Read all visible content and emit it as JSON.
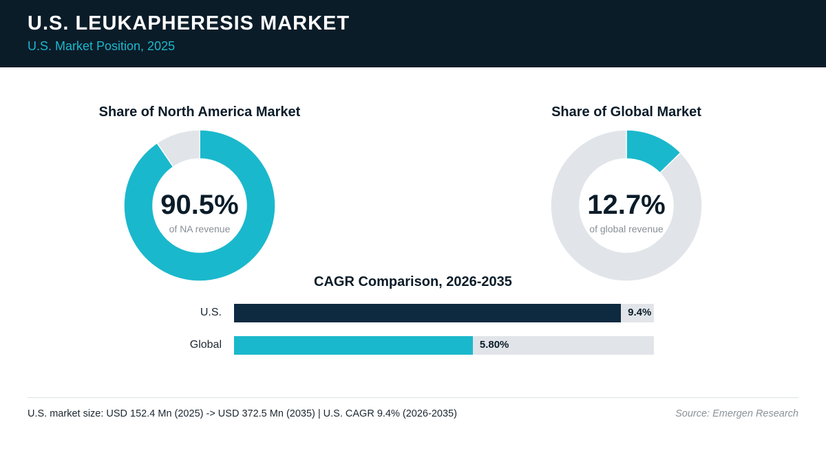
{
  "header": {
    "title": "U.S. LEUKAPHERESIS MARKET",
    "subtitle": "U.S. Market Position, 2025"
  },
  "colors": {
    "header_bg": "#0b1c29",
    "accent": "#1ab8cc",
    "us_bar": "#0e2a40",
    "track": "#e1e5e9"
  },
  "chart_data": [
    {
      "type": "pie",
      "title": "Share of North America Market",
      "center_value": "90.5%",
      "center_caption": "of NA revenue",
      "values": [
        90.5,
        9.5
      ],
      "colors": [
        "#1ab8cc",
        "#e1e5e9"
      ]
    },
    {
      "type": "pie",
      "title": "Share of Global Market",
      "center_value": "12.7%",
      "center_caption": "of global revenue",
      "values": [
        12.7,
        87.3
      ],
      "colors": [
        "#1ab8cc",
        "#e1e5e9"
      ]
    },
    {
      "type": "bar",
      "orientation": "horizontal",
      "title": "CAGR Comparison, 2026-2035",
      "categories": [
        "U.S.",
        "Global"
      ],
      "values": [
        9.4,
        5.8
      ],
      "value_labels": [
        "9.4%",
        "5.80%"
      ],
      "colors": [
        "#0e2a40",
        "#1ab8cc"
      ],
      "xlim": [
        0,
        10.2
      ]
    }
  ],
  "footer": {
    "summary": "U.S. market size: USD 152.4 Mn (2025) -> USD 372.5 Mn (2035)  |  U.S. CAGR 9.4% (2026-2035)",
    "source": "Source: Emergen Research"
  }
}
